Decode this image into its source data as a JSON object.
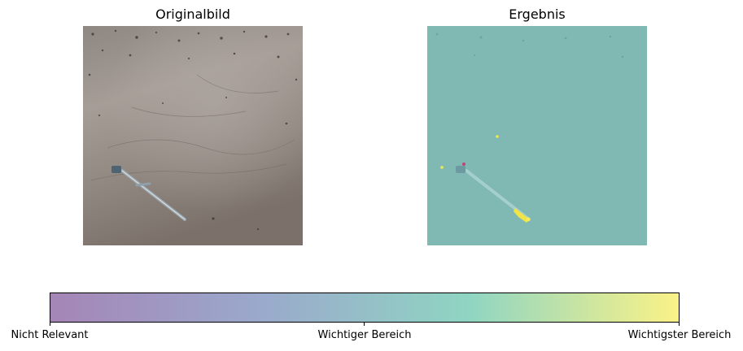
{
  "panels": [
    {
      "title": "Originalbild",
      "content": "photo"
    },
    {
      "title": "Ergebnis",
      "content": "heatmap-overlay"
    }
  ],
  "colorbar": {
    "colors": [
      "#a585b6",
      "#9aa9cc",
      "#8fd5c2",
      "#fbf287"
    ],
    "ticks": [
      {
        "label": "Nicht Relevant",
        "position": 0
      },
      {
        "label": "Wichtiger Bereich",
        "position": 0.5
      },
      {
        "label": "Wichtigster Bereich",
        "position": 1
      }
    ]
  }
}
